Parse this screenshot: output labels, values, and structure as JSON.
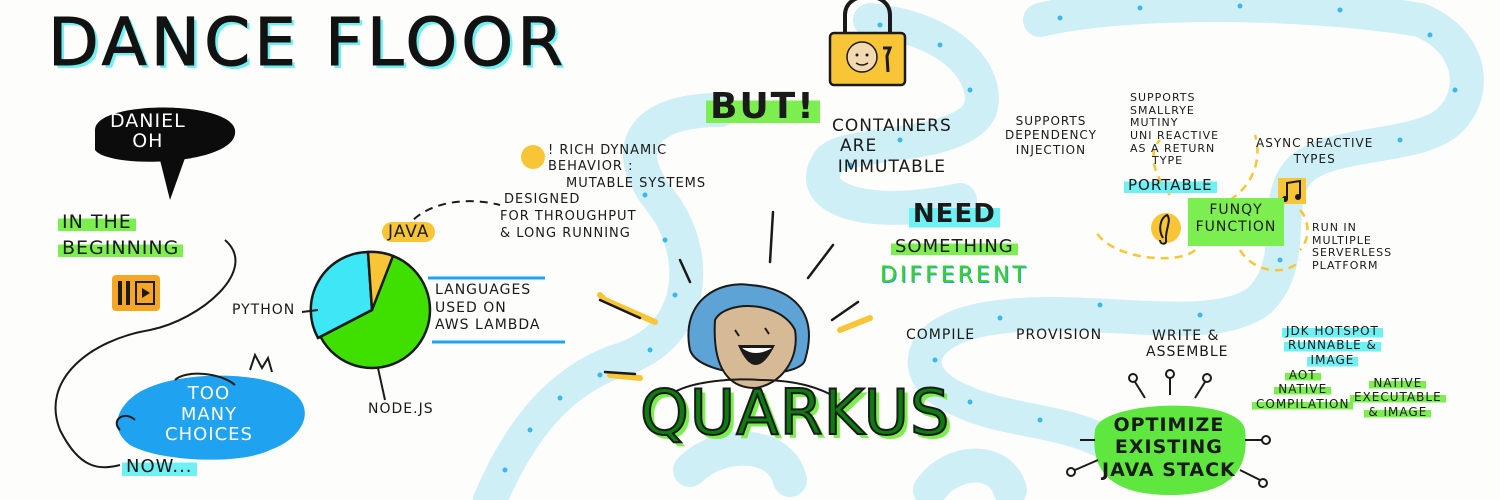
{
  "title": "DANCE FLOOR",
  "speaker": {
    "line1": "DANIEL",
    "line2": "OH"
  },
  "beginning": {
    "line1": "IN THE",
    "line2": "BEGINNING"
  },
  "too_many": {
    "line1": "TOO",
    "line2": "MANY",
    "line3": "CHOICES"
  },
  "now": "NOW...",
  "pie": {
    "labels": {
      "java": "JAVA",
      "python": "PYTHON",
      "node": "NODE.JS"
    },
    "colors": {
      "java": "#f8c537",
      "python": "#3de7f5",
      "node": "#3fe000"
    }
  },
  "lambda_caption": {
    "line1": "LANGUAGES",
    "line2": "USED ON",
    "line3": "AWS LAMBDA"
  },
  "rich": {
    "line1": "! RICH DYNAMIC",
    "line2": "BEHAVIOR :",
    "line3": "MUTABLE SYSTEMS"
  },
  "designed": {
    "line1": "DESIGNED",
    "line2": "FOR THROUGHPUT",
    "line3": "& LONG RUNNING"
  },
  "but": "BUT!",
  "containers": {
    "line1": "CONTAINERS",
    "line2": "ARE",
    "line3": "IMMUTABLE"
  },
  "need": {
    "line1": "NEED",
    "line2": "SOMETHING",
    "line3": "DIFFERENT"
  },
  "quarkus": "QUARKUS",
  "steps": {
    "compile": "COMPILE",
    "provision": "PROVISION",
    "write1": "WRITE &",
    "write2": "ASSEMBLE"
  },
  "jdk": {
    "line1": "JDK HOTSPOT",
    "line2": "RUNNABLE &",
    "line3": "IMAGE"
  },
  "aot": {
    "line1": "AOT",
    "line2": "NATIVE",
    "line3": "COMPILATION"
  },
  "native": {
    "line1": "NATIVE",
    "line2": "EXECUTABLE",
    "line3": "& IMAGE"
  },
  "optimize": {
    "line1": "OPTIMIZE",
    "line2": "EXISTING",
    "line3": "JAVA STACK"
  },
  "supports_di": {
    "line1": "SUPPORTS",
    "line2": "DEPENDENCY",
    "line3": "INJECTION"
  },
  "smallrye": {
    "line1": "SUPPORTS",
    "line2": "SMALLRYE",
    "line3": "MUTINY",
    "line4": "UNI REACTIVE",
    "line5": "AS A RETURN",
    "line6": "TYPE"
  },
  "async": {
    "line1": "ASYNC REACTIVE",
    "line2": "TYPES"
  },
  "portable": "PORTABLE",
  "funqy": {
    "line1": "FUNQY",
    "line2": "FUNCTION"
  },
  "run_in": {
    "line1": "RUN IN",
    "line2": "MULTIPLE",
    "line3": "SERVERLESS",
    "line4": "PLATFORM"
  },
  "colors": {
    "cyan": "#6ff0f3",
    "green": "#7dee4f",
    "yellow": "#f8c537",
    "blue": "#1fa3f0",
    "ink": "#1a1a1a"
  }
}
